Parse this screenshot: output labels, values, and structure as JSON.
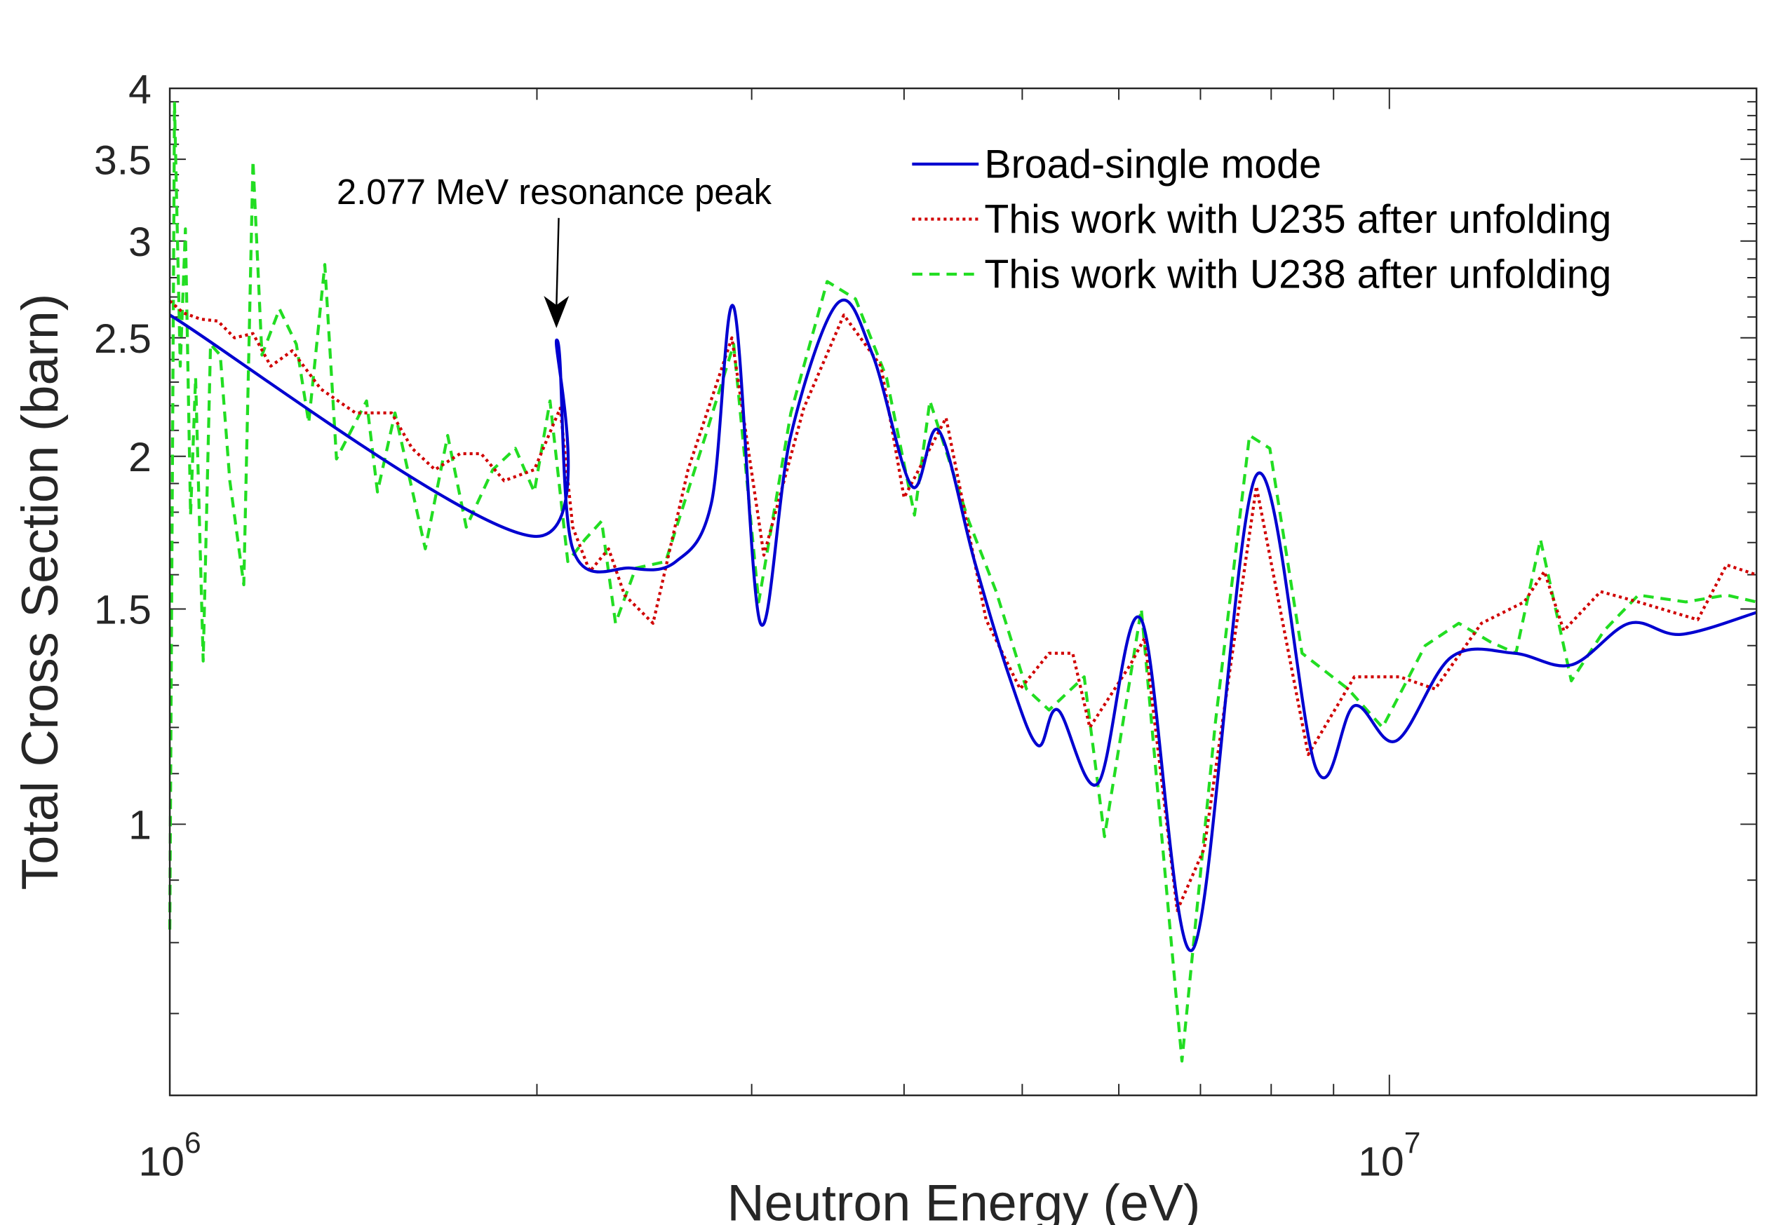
{
  "chart_data": {
    "type": "line",
    "title": "",
    "xlabel": "Neutron Energy (eV)",
    "ylabel": "Total Cross Section (barn)",
    "x_scale": "log",
    "y_scale": "log",
    "xlim": [
      1000000,
      20000000
    ],
    "ylim": [
      0.6,
      4
    ],
    "x_ticks": [
      {
        "value": 1000000,
        "base": "10",
        "exp": "6"
      },
      {
        "value": 10000000,
        "base": "10",
        "exp": "7"
      }
    ],
    "y_ticks": [
      {
        "value": 1,
        "label": "1"
      },
      {
        "value": 1.5,
        "label": "1.5"
      },
      {
        "value": 2,
        "label": "2"
      },
      {
        "value": 2.5,
        "label": "2.5"
      },
      {
        "value": 3,
        "label": "3"
      },
      {
        "value": 3.5,
        "label": "3.5"
      },
      {
        "value": 4,
        "label": "4"
      }
    ],
    "grid": false,
    "legend_position": "top-right",
    "annotation": {
      "text": "2.077 MeV resonance peak",
      "x": 2077000,
      "y": 2.49
    },
    "series": [
      {
        "name": "Broad-single mode",
        "color": "#0000d0",
        "style": "solid",
        "x": [
          1000000,
          1990000,
          2077000,
          2140000,
          2390000,
          2600000,
          2780000,
          2900000,
          3050000,
          3230000,
          3530000,
          3770000,
          4060000,
          4270000,
          4570000,
          4880000,
          5150000,
          5350000,
          5770000,
          6260000,
          6900000,
          7780000,
          8710000,
          9360000,
          10130000,
          11240000,
          12660000,
          14100000,
          15730000,
          17340000,
          20000000
        ],
        "y": [
          2.61,
          1.72,
          2.49,
          1.68,
          1.62,
          1.64,
          1.83,
          2.65,
          1.46,
          2.08,
          2.67,
          2.42,
          1.89,
          2.1,
          1.64,
          1.32,
          1.16,
          1.24,
          1.08,
          1.47,
          0.79,
          1.93,
          1.11,
          1.25,
          1.17,
          1.37,
          1.38,
          1.35,
          1.46,
          1.43,
          1.49
        ]
      },
      {
        "name": "This work with U235 after unfolding",
        "color": "#d00000",
        "style": "dotted",
        "x": [
          1000000,
          1026000,
          1060000,
          1095000,
          1130000,
          1170000,
          1210000,
          1260000,
          1330000,
          1420000,
          1520000,
          1580000,
          1650000,
          1730000,
          1800000,
          1880000,
          1990000,
          2090000,
          2140000,
          2210000,
          2290000,
          2360000,
          2490000,
          2660000,
          2890000,
          3070000,
          3310000,
          3570000,
          3830000,
          4000000,
          4330000,
          4670000,
          4980000,
          5260000,
          5500000,
          5680000,
          6130000,
          6300000,
          6700000,
          7050000,
          7780000,
          8580000,
          9360000,
          10200000,
          10900000,
          11900000,
          12900000,
          13400000,
          13900000,
          14900000,
          16000000,
          17900000,
          18900000,
          20000000
        ],
        "y": [
          2.68,
          2.62,
          2.59,
          2.58,
          2.5,
          2.52,
          2.37,
          2.44,
          2.27,
          2.17,
          2.17,
          2.03,
          1.95,
          2.01,
          2.01,
          1.91,
          1.95,
          2.19,
          1.75,
          1.61,
          1.68,
          1.54,
          1.46,
          1.95,
          2.5,
          1.66,
          2.19,
          2.61,
          2.37,
          1.85,
          2.15,
          1.47,
          1.29,
          1.38,
          1.38,
          1.2,
          1.35,
          1.42,
          0.85,
          0.955,
          1.89,
          1.14,
          1.32,
          1.32,
          1.29,
          1.46,
          1.52,
          1.61,
          1.44,
          1.55,
          1.52,
          1.47,
          1.63,
          1.6
        ]
      },
      {
        "name": "This work with U238 after unfolding",
        "color": "#22dd22",
        "style": "dashed",
        "x": [
          1000000,
          1009000,
          1020000,
          1030000,
          1040000,
          1050000,
          1065000,
          1080000,
          1100000,
          1120000,
          1150000,
          1170000,
          1190000,
          1230000,
          1270000,
          1300000,
          1340000,
          1370000,
          1450000,
          1480000,
          1530000,
          1620000,
          1690000,
          1750000,
          1840000,
          1920000,
          1990000,
          2050000,
          2120000,
          2190000,
          2260000,
          2320000,
          2410000,
          2550000,
          2750000,
          2900000,
          3040000,
          3230000,
          3460000,
          3650000,
          3870000,
          4080000,
          4200000,
          4520000,
          4760000,
          5040000,
          5260000,
          5620000,
          5840000,
          6260000,
          6760000,
          7200000,
          7680000,
          7980000,
          8480000,
          9250000,
          9870000,
          10700000,
          11400000,
          12100000,
          12700000,
          13300000,
          14100000,
          15000000,
          16000000,
          17500000,
          18900000,
          20000000
        ],
        "y": [
          0.82,
          3.89,
          2.37,
          3.07,
          1.79,
          2.32,
          1.36,
          2.47,
          2.42,
          1.91,
          1.57,
          3.49,
          2.42,
          2.64,
          2.47,
          2.13,
          2.87,
          1.99,
          2.22,
          1.87,
          2.17,
          1.68,
          2.08,
          1.75,
          1.95,
          2.03,
          1.87,
          2.22,
          1.64,
          1.71,
          1.77,
          1.46,
          1.62,
          1.64,
          2.08,
          2.47,
          1.52,
          2.17,
          2.78,
          2.69,
          2.32,
          1.79,
          2.22,
          1.77,
          1.55,
          1.29,
          1.24,
          1.32,
          0.977,
          1.5,
          0.64,
          1.21,
          2.08,
          2.03,
          1.38,
          1.29,
          1.2,
          1.4,
          1.46,
          1.41,
          1.38,
          1.71,
          1.31,
          1.44,
          1.54,
          1.52,
          1.54,
          1.52
        ]
      }
    ]
  }
}
